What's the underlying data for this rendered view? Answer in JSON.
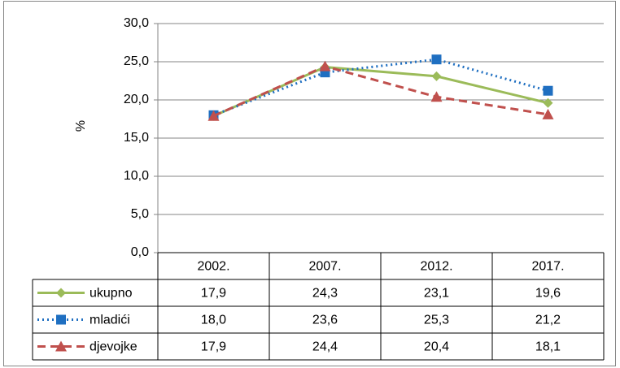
{
  "chart_data": {
    "type": "line",
    "ylabel": "%",
    "categories": [
      "2002.",
      "2007.",
      "2012.",
      "2017."
    ],
    "series": [
      {
        "name": "ukupno",
        "color": "#9bbb59",
        "line_style": "solid",
        "marker": "diamond",
        "values": [
          17.9,
          24.3,
          23.1,
          19.6
        ],
        "value_labels": [
          "17,9",
          "24,3",
          "23,1",
          "19,6"
        ]
      },
      {
        "name": "mladići",
        "color": "#1f6fc1",
        "line_style": "dotted",
        "marker": "square",
        "values": [
          18.0,
          23.6,
          25.3,
          21.2
        ],
        "value_labels": [
          "18,0",
          "23,6",
          "25,3",
          "21,2"
        ]
      },
      {
        "name": "djevojke",
        "color": "#c0504d",
        "line_style": "dashed",
        "marker": "triangle",
        "values": [
          17.9,
          24.4,
          20.4,
          18.1
        ],
        "value_labels": [
          "17,9",
          "24,4",
          "20,4",
          "18,1"
        ]
      }
    ],
    "ylim": [
      0,
      30
    ],
    "yticks": [
      {
        "value": 0,
        "label": "0,0"
      },
      {
        "value": 5,
        "label": "5,0"
      },
      {
        "value": 10,
        "label": "10,0"
      },
      {
        "value": 15,
        "label": "15,0"
      },
      {
        "value": 20,
        "label": "20,0"
      },
      {
        "value": 25,
        "label": "25,0"
      },
      {
        "value": 30,
        "label": "30,0"
      }
    ],
    "grid": true
  }
}
